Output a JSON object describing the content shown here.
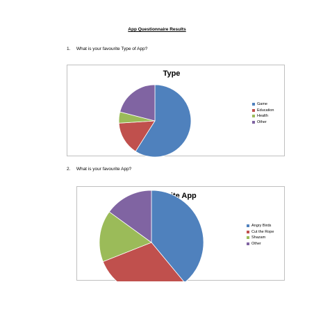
{
  "document": {
    "title": "App Questionnaire Results"
  },
  "questions": [
    {
      "number": "1.",
      "text": "What is your favourite Type of App?"
    },
    {
      "number": "2.",
      "text": "What is your favourite App?"
    }
  ],
  "colors": {
    "blue": "#4f81bd",
    "red": "#c0504d",
    "green": "#9bbb59",
    "purple": "#8064a2"
  },
  "chart_data": [
    {
      "type": "pie",
      "title": "Type",
      "categories": [
        "Game",
        "Education",
        "Health",
        "Other"
      ],
      "values": [
        59,
        15,
        5,
        21
      ],
      "colors": [
        "#4f81bd",
        "#c0504d",
        "#9bbb59",
        "#8064a2"
      ],
      "legend": "right"
    },
    {
      "type": "pie",
      "title": "Favourite App",
      "categories": [
        "Angry Birds",
        "Cut the Rope",
        "Shazam",
        "Other"
      ],
      "values": [
        39,
        30,
        16,
        15
      ],
      "colors": [
        "#4f81bd",
        "#c0504d",
        "#9bbb59",
        "#8064a2"
      ],
      "legend": "right"
    }
  ]
}
